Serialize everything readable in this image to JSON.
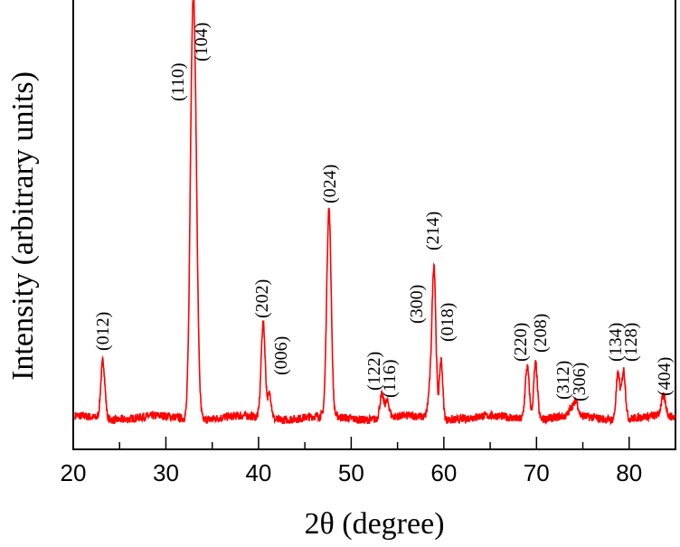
{
  "chart_data": {
    "type": "line",
    "title": "",
    "xlabel": "2θ (degree)",
    "ylabel": "Intensity (arbitrary units)",
    "xlim": [
      20,
      85
    ],
    "ylim": [
      -9,
      119
    ],
    "xticks": [
      20,
      30,
      40,
      50,
      60,
      70,
      80
    ],
    "xtick_labels": [
      "20",
      "30",
      "40",
      "50",
      "60",
      "70",
      "80"
    ],
    "grid": false,
    "line_color": "#ff0000",
    "peaks": [
      {
        "label": "(012)",
        "x": 23.2,
        "y": 16.5,
        "w": 0.22
      },
      {
        "label": "(110)",
        "x": 32.8,
        "y": 60,
        "w": 0.25
      },
      {
        "label": "(104)",
        "x": 33.1,
        "y": 82,
        "w": 0.28
      },
      {
        "label": "(202)",
        "x": 40.5,
        "y": 27,
        "w": 0.22
      },
      {
        "label": "(006)",
        "x": 41.2,
        "y": 7,
        "w": 0.2
      },
      {
        "label": "(024)",
        "x": 47.6,
        "y": 59,
        "w": 0.24
      },
      {
        "label": "(122)",
        "x": 53.3,
        "y": 6.5,
        "w": 0.22
      },
      {
        "label": "(116)",
        "x": 53.9,
        "y": 4.5,
        "w": 0.22
      },
      {
        "label": "(300)",
        "x": 58.6,
        "y": 10,
        "w": 0.25
      },
      {
        "label": "(214)",
        "x": 58.95,
        "y": 40,
        "w": 0.2
      },
      {
        "label": "(018)",
        "x": 59.7,
        "y": 17,
        "w": 0.18
      },
      {
        "label": "(220)",
        "x": 69.0,
        "y": 15,
        "w": 0.22
      },
      {
        "label": "(208)",
        "x": 69.9,
        "y": 16,
        "w": 0.2
      },
      {
        "label": "(312)",
        "x": 73.8,
        "y": 2.5,
        "w": 0.25
      },
      {
        "label": "(306)",
        "x": 74.3,
        "y": 4,
        "w": 0.2
      },
      {
        "label": "(134)",
        "x": 78.8,
        "y": 13,
        "w": 0.2
      },
      {
        "label": "(128)",
        "x": 79.4,
        "y": 14,
        "w": 0.2
      },
      {
        "label": "(404)",
        "x": 83.7,
        "y": 5.5,
        "w": 0.25
      }
    ]
  }
}
